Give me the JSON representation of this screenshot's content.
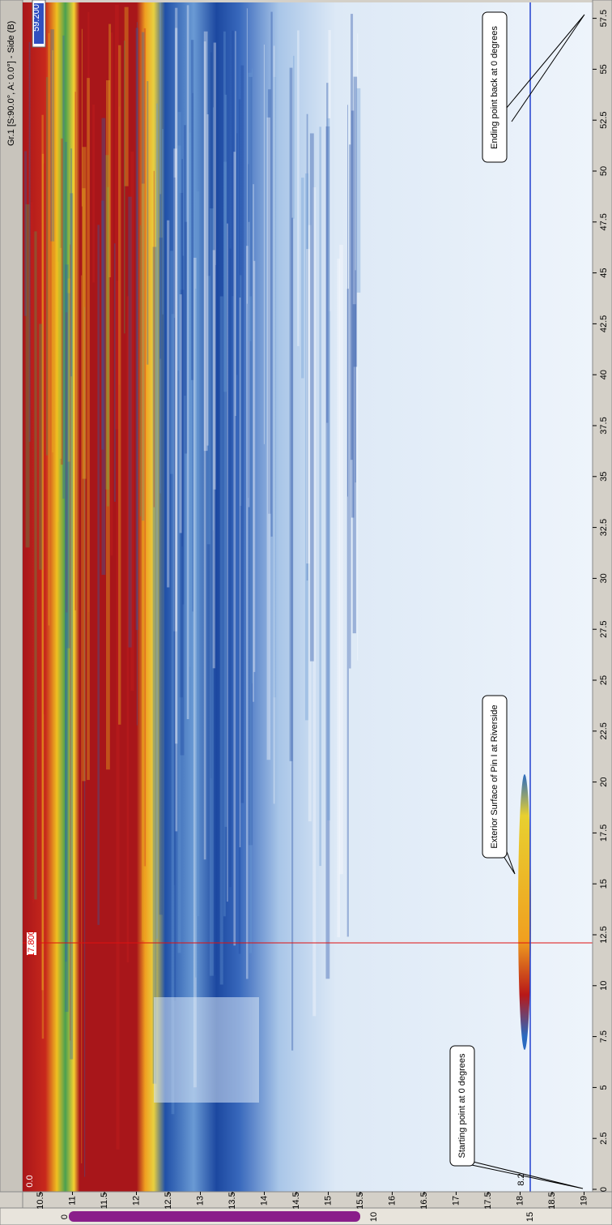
{
  "window": {
    "title": "Gr.1 [S:90.0°, A: 0.0°] - Side (B)"
  },
  "colorbar": {
    "max_label": "59.200"
  },
  "cursors": {
    "origin_label": "0.0",
    "red_label": "17.800",
    "blue_label": "8.2"
  },
  "scan_axis": {
    "ticks": [
      "0",
      "2.5",
      "5",
      "7.5",
      "10",
      "12.5",
      "15",
      "17.5",
      "20",
      "22.5",
      "25",
      "27.5",
      "30",
      "32.5",
      "35",
      "37.5",
      "40",
      "42.5",
      "45",
      "47.5",
      "50",
      "52.5",
      "55",
      "57.5"
    ]
  },
  "depth_axis": {
    "ticks": [
      "10.5",
      "11",
      "11.5",
      "12",
      "12.5",
      "13",
      "13.5",
      "14",
      "14.5",
      "15",
      "15.5",
      "16",
      "16.5",
      "17",
      "17.5",
      "18",
      "18.5",
      "19"
    ]
  },
  "annotations": [
    {
      "text": "Starting point at 0 degrees"
    },
    {
      "text": "Exterior Surface of Pin I at Riverside"
    },
    {
      "text": "Ending point back at 0 degrees"
    }
  ],
  "scrollbar": {
    "labels": [
      "0",
      "10",
      "15"
    ]
  }
}
